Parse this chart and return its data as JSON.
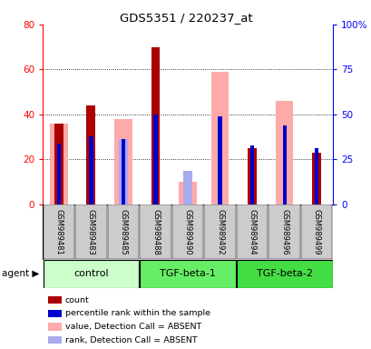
{
  "title": "GDS5351 / 220237_at",
  "samples": [
    "GSM989481",
    "GSM989483",
    "GSM989485",
    "GSM989488",
    "GSM989490",
    "GSM989492",
    "GSM989494",
    "GSM989496",
    "GSM989499"
  ],
  "count": [
    36,
    44,
    0,
    70,
    0,
    0,
    25,
    0,
    23
  ],
  "percentile_rank": [
    27,
    30,
    29,
    40,
    0,
    39,
    26,
    35,
    25
  ],
  "value_absent": [
    36,
    0,
    38,
    0,
    10,
    59,
    0,
    46,
    0
  ],
  "rank_absent": [
    27,
    0,
    29,
    0,
    15,
    0,
    0,
    0,
    0
  ],
  "ylim_left": [
    0,
    80
  ],
  "ylim_right": [
    0,
    100
  ],
  "yticks_left": [
    0,
    20,
    40,
    60,
    80
  ],
  "yticks_right": [
    0,
    25,
    50,
    75,
    100
  ],
  "ytick_labels_right": [
    "0",
    "25",
    "50",
    "75",
    "100%"
  ],
  "color_count": "#aa0000",
  "color_percentile": "#0000cc",
  "color_value_absent": "#ffaaaa",
  "color_rank_absent": "#aaaaee",
  "background_sample": "#cccccc",
  "background_group_control": "#ccffcc",
  "background_group_tgf1": "#66ee66",
  "background_group_tgf2": "#44dd44",
  "group_configs": [
    {
      "label": "control",
      "indices": [
        0,
        1,
        2
      ],
      "color_key": "background_group_control"
    },
    {
      "label": "TGF-beta-1",
      "indices": [
        3,
        4,
        5
      ],
      "color_key": "background_group_tgf1"
    },
    {
      "label": "TGF-beta-2",
      "indices": [
        6,
        7,
        8
      ],
      "color_key": "background_group_tgf2"
    }
  ]
}
